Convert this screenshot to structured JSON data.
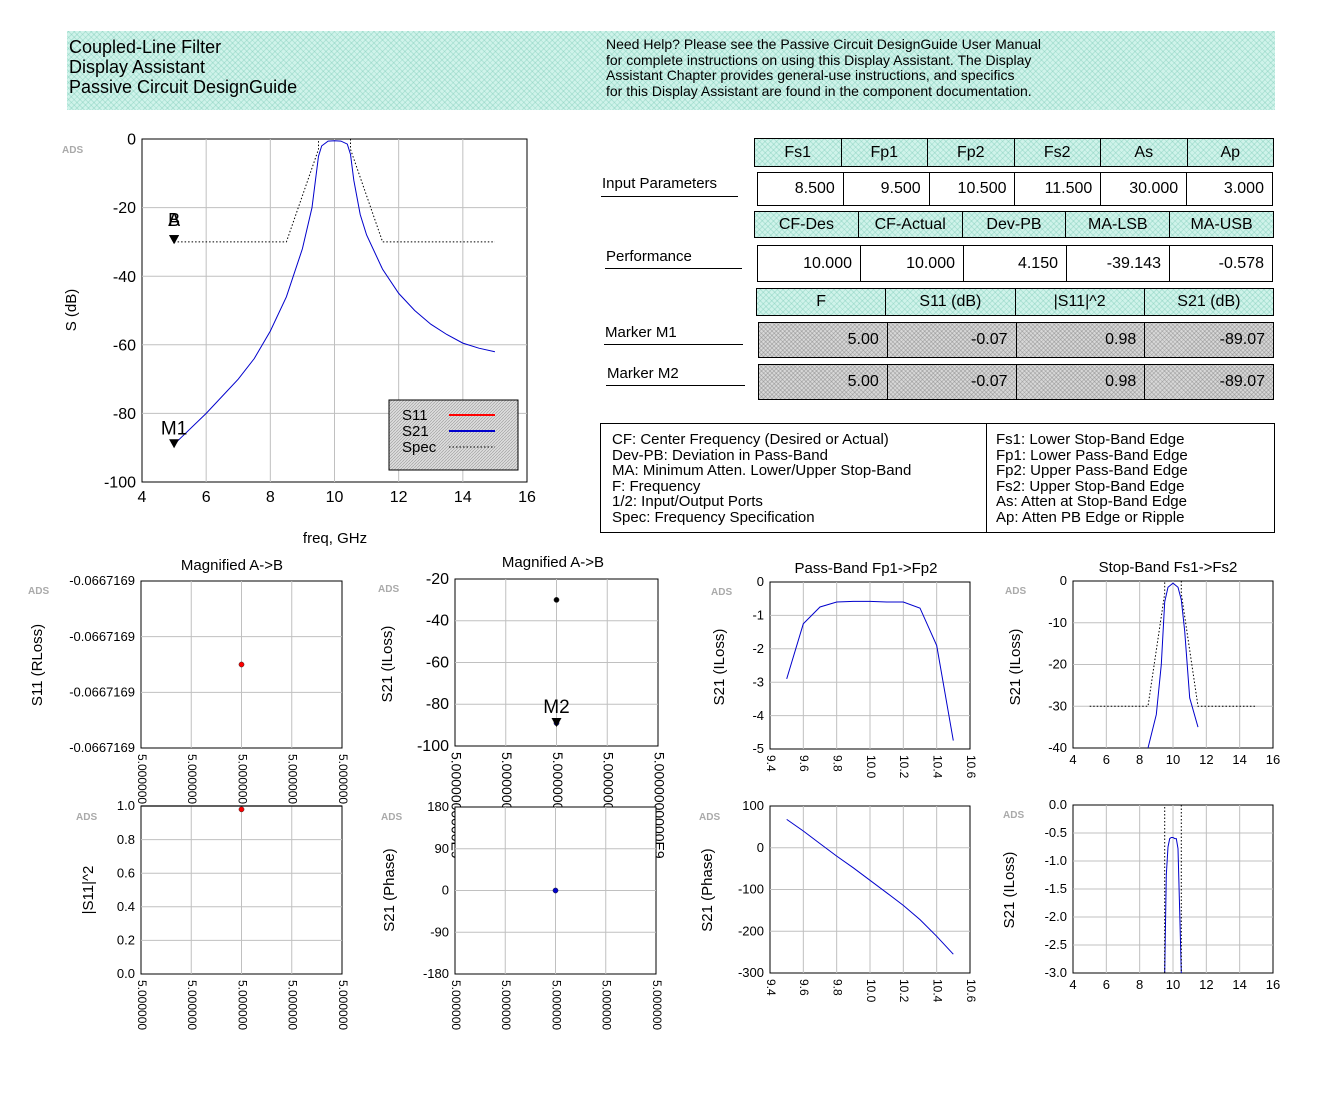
{
  "header": {
    "title_lines": [
      "Coupled-Line Filter",
      "Display Assistant",
      "Passive Circuit DesignGuide"
    ],
    "help_lines": [
      "Need Help? Please see the Passive Circuit DesignGuide User Manual",
      "for complete instructions on using this Display Assistant.  The Display",
      "Assistant Chapter provides general-use instructions, and specifics",
      "for this Display Assistant are found in the component documentation."
    ]
  },
  "input_params": {
    "label": "Input Parameters",
    "headers": [
      "Fs1",
      "Fp1",
      "Fp2",
      "Fs2",
      "As",
      "Ap"
    ],
    "values": [
      "8.500",
      "9.500",
      "10.500",
      "11.500",
      "30.000",
      "3.000"
    ]
  },
  "performance": {
    "label": "Performance",
    "headers": [
      "CF-Des",
      "CF-Actual",
      "Dev-PB",
      "MA-LSB",
      "MA-USB"
    ],
    "values": [
      "10.000",
      "10.000",
      "4.150",
      "-39.143",
      "-0.578"
    ]
  },
  "markers": {
    "headers": [
      "F",
      "S11 (dB)",
      "|S11|^2",
      "S21 (dB)"
    ],
    "m1": {
      "label": "Marker M1",
      "values": [
        "5.00",
        "-0.07",
        "0.98",
        "-89.07"
      ]
    },
    "m2": {
      "label": "Marker M2",
      "values": [
        "5.00",
        "-0.07",
        "0.98",
        "-89.07"
      ]
    }
  },
  "legend": {
    "left": [
      "CF: Center Frequency (Desired or Actual)",
      "Dev-PB: Deviation in Pass-Band",
      "MA: Minimum Atten. Lower/Upper Stop-Band",
      "F:  Frequency",
      "1/2:  Input/Output Ports",
      "Spec: Frequency Specification"
    ],
    "right": [
      "Fs1: Lower Stop-Band Edge",
      "Fp1: Lower Pass-Band Edge",
      "Fp2: Upper Pass-Band Edge",
      "Fs2: Upper Stop-Band Edge",
      "As:  Atten at Stop-Band Edge",
      "Ap:  Atten PB Edge or Ripple"
    ]
  },
  "colors": {
    "s11": "#ff0000",
    "s21": "#0000cc",
    "spec": "#000000",
    "teal": "#cff3ea",
    "grid": "#c0c0c0"
  },
  "chart_data": [
    {
      "id": "main",
      "type": "line",
      "xlabel": "freq, GHz",
      "ylabel": "S (dB)",
      "xlim": [
        4,
        16
      ],
      "ylim": [
        -100,
        0
      ],
      "xticks": [
        4,
        6,
        8,
        10,
        12,
        14,
        16
      ],
      "yticks": [
        0,
        -20,
        -40,
        -60,
        -80,
        -100
      ],
      "logo": "ADS",
      "series": [
        {
          "name": "S21",
          "color": "#0000cc",
          "x": [
            5,
            6,
            7,
            7.5,
            8,
            8.5,
            9,
            9.3,
            9.5,
            9.6,
            9.8,
            10,
            10.2,
            10.4,
            10.5,
            10.6,
            10.8,
            11,
            11.5,
            12,
            12.5,
            13,
            13.5,
            14,
            14.5,
            15
          ],
          "y": [
            -89,
            -80,
            -70,
            -64,
            -56,
            -46,
            -32,
            -20,
            -5,
            -2,
            -0.6,
            -0.5,
            -0.6,
            -1.5,
            -4.5,
            -12,
            -22,
            -28,
            -38,
            -45,
            -50,
            -54,
            -57,
            -59.5,
            -61,
            -62
          ]
        },
        {
          "name": "S11",
          "color": "#ff0000",
          "x": [],
          "y": []
        },
        {
          "name": "Spec",
          "color": "#000000",
          "dotted": true,
          "segments": [
            [
              [
                5,
                -30
              ],
              [
                8.5,
                -30
              ],
              [
                9.5,
                -3
              ],
              [
                9.5,
                0
              ]
            ],
            [
              [
                10.5,
                0
              ],
              [
                10.5,
                -3
              ],
              [
                11.5,
                -30
              ],
              [
                15,
                -30
              ]
            ]
          ]
        }
      ],
      "markers": [
        {
          "label": "M1",
          "x": 5,
          "y": -89
        },
        {
          "label": "A",
          "x": 5,
          "y": -29.5
        },
        {
          "label": "B",
          "x": 5,
          "y": -29.5
        }
      ],
      "legend_entries": [
        "S11",
        "S21",
        "Spec"
      ]
    },
    {
      "id": "s11rloss",
      "type": "scatter",
      "title": "Magnified A->B",
      "ylabel": "S11 (RLoss)",
      "xlim": [
        0,
        4
      ],
      "ylim": [
        0,
        3
      ],
      "ytick_labels": [
        "-0.0667169",
        "-0.0667169",
        "-0.0667169",
        "-0.0667169"
      ],
      "xtick_labels": [
        "5.000000",
        "5.000000",
        "5.000000",
        "5.000000",
        "5.000000"
      ],
      "points": [
        {
          "x": 2,
          "y": 1.5,
          "color": "#ff0000"
        }
      ],
      "logo": "ADS"
    },
    {
      "id": "s21iloss_mag",
      "type": "scatter",
      "title": "Magnified A->B",
      "ylabel": "S21 (ILoss)",
      "xlim": [
        0,
        4
      ],
      "ylim": [
        -100,
        -20
      ],
      "yticks": [
        -20,
        -40,
        -60,
        -80,
        -100
      ],
      "xtick_labels": [
        "5.0000000000E9",
        "5.0000000000E9",
        "5.0000000000E9",
        "5.0000000000E9",
        "5.0000000000E9"
      ],
      "points": [
        {
          "x": 2,
          "y": -30,
          "color": "#000000"
        },
        {
          "x": 2,
          "y": -89,
          "color": "#0000cc"
        }
      ],
      "markers": [
        {
          "label": "M2",
          "x": 2,
          "y": -89
        }
      ],
      "logo": "ADS"
    },
    {
      "id": "passband",
      "type": "line",
      "title": "Pass-Band Fp1->Fp2",
      "ylabel": "S21 (ILoss)",
      "xlim": [
        9.4,
        10.6
      ],
      "ylim": [
        -5,
        0
      ],
      "xticks": [
        9.4,
        9.6,
        9.8,
        10.0,
        10.2,
        10.4,
        10.6
      ],
      "xtick_labels": [
        "9.4",
        "9.6",
        "9.8",
        "10.0",
        "10.2",
        "10.4",
        "10.6"
      ],
      "yticks": [
        0,
        -1,
        -2,
        -3,
        -4,
        -5
      ],
      "series": [
        {
          "name": "S21",
          "color": "#0000cc",
          "x": [
            9.5,
            9.6,
            9.7,
            9.8,
            9.9,
            10.0,
            10.1,
            10.2,
            10.3,
            10.4,
            10.5
          ],
          "y": [
            -2.9,
            -1.25,
            -0.75,
            -0.6,
            -0.58,
            -0.58,
            -0.6,
            -0.6,
            -0.78,
            -1.9,
            -4.75
          ]
        }
      ],
      "logo": "ADS"
    },
    {
      "id": "stopband",
      "type": "line",
      "title": "Stop-Band Fs1->Fs2",
      "ylabel": "S21 (ILoss)",
      "xlim": [
        4,
        16
      ],
      "ylim": [
        -40,
        0
      ],
      "xticks": [
        4,
        6,
        8,
        10,
        12,
        14,
        16
      ],
      "yticks": [
        0,
        -10,
        -20,
        -30,
        -40
      ],
      "series": [
        {
          "name": "S21",
          "color": "#0000cc",
          "x": [
            8.5,
            9,
            9.3,
            9.5,
            9.7,
            10,
            10.3,
            10.5,
            10.7,
            11,
            11.5
          ],
          "y": [
            -40,
            -32,
            -20,
            -5,
            -1.5,
            -0.5,
            -1.5,
            -4.5,
            -12,
            -28,
            -35
          ]
        },
        {
          "name": "Spec",
          "color": "#000000",
          "dotted": true,
          "segments": [
            [
              [
                5,
                -30
              ],
              [
                8.5,
                -30
              ],
              [
                9.5,
                -3
              ],
              [
                9.5,
                0
              ]
            ],
            [
              [
                10.5,
                0
              ],
              [
                10.5,
                -3
              ],
              [
                11.5,
                -30
              ],
              [
                15,
                -30
              ]
            ]
          ]
        }
      ],
      "logo": "ADS"
    },
    {
      "id": "s11sq",
      "type": "scatter",
      "ylabel": "|S11|^2",
      "xlim": [
        0,
        4
      ],
      "ylim": [
        0,
        1
      ],
      "yticks": [
        1.0,
        0.8,
        0.6,
        0.4,
        0.2,
        0.0
      ],
      "ytick_labels": [
        "1.0",
        "0.8",
        "0.6",
        "0.4",
        "0.2",
        "0.0"
      ],
      "xtick_labels": [
        "5.000000",
        "5.000000",
        "5.000000",
        "5.000000",
        "5.000000"
      ],
      "points": [
        {
          "x": 2,
          "y": 0.98,
          "color": "#ff0000"
        }
      ],
      "logo": "ADS"
    },
    {
      "id": "s21phase_mag",
      "type": "scatter",
      "ylabel": "S21 (Phase)",
      "xlim": [
        0,
        4
      ],
      "ylim": [
        -180,
        180
      ],
      "yticks": [
        180,
        90,
        0,
        -90,
        -180
      ],
      "xtick_labels": [
        "5.000000",
        "5.000000",
        "5.000000",
        "5.000000",
        "5.000000"
      ],
      "points": [
        {
          "x": 2,
          "y": 0,
          "color": "#0000cc"
        }
      ],
      "logo": "ADS"
    },
    {
      "id": "passphase",
      "type": "line",
      "ylabel": "S21 (Phase)",
      "xlim": [
        9.4,
        10.6
      ],
      "ylim": [
        -300,
        100
      ],
      "xticks": [
        9.4,
        9.6,
        9.8,
        10.0,
        10.2,
        10.4,
        10.6
      ],
      "xtick_labels": [
        "9.4",
        "9.6",
        "9.8",
        "10.0",
        "10.2",
        "10.4",
        "10.6"
      ],
      "yticks": [
        100,
        0,
        -100,
        -200,
        -300
      ],
      "series": [
        {
          "name": "S21",
          "color": "#0000cc",
          "x": [
            9.5,
            9.6,
            9.7,
            9.8,
            9.9,
            10.0,
            10.1,
            10.2,
            10.3,
            10.4,
            10.5
          ],
          "y": [
            68,
            40,
            10,
            -20,
            -48,
            -78,
            -108,
            -138,
            -172,
            -212,
            -255
          ]
        }
      ],
      "logo": "ADS"
    },
    {
      "id": "stopzoom",
      "type": "line",
      "ylabel": "S21 (ILoss)",
      "xlim": [
        4,
        16
      ],
      "ylim": [
        -3,
        0
      ],
      "xticks": [
        4,
        6,
        8,
        10,
        12,
        14,
        16
      ],
      "yticks": [
        0.0,
        -0.5,
        -1.0,
        -1.5,
        -2.0,
        -2.5,
        -3.0
      ],
      "ytick_labels": [
        "0.0",
        "-0.5",
        "-1.0",
        "-1.5",
        "-2.0",
        "-2.5",
        "-3.0"
      ],
      "series": [
        {
          "name": "S21",
          "color": "#0000cc",
          "x": [
            9.5,
            9.6,
            9.7,
            9.8,
            9.9,
            10.0,
            10.1,
            10.2,
            10.3,
            10.4,
            10.5
          ],
          "y": [
            -3,
            -1.25,
            -0.75,
            -0.6,
            -0.58,
            -0.58,
            -0.6,
            -0.6,
            -0.78,
            -1.9,
            -3
          ]
        },
        {
          "name": "Spec",
          "color": "#000000",
          "dotted": true,
          "segments": [
            [
              [
                9.5,
                -3
              ],
              [
                9.5,
                0
              ]
            ],
            [
              [
                10.5,
                0
              ],
              [
                10.5,
                -3
              ]
            ]
          ]
        }
      ],
      "logo": "ADS"
    }
  ]
}
